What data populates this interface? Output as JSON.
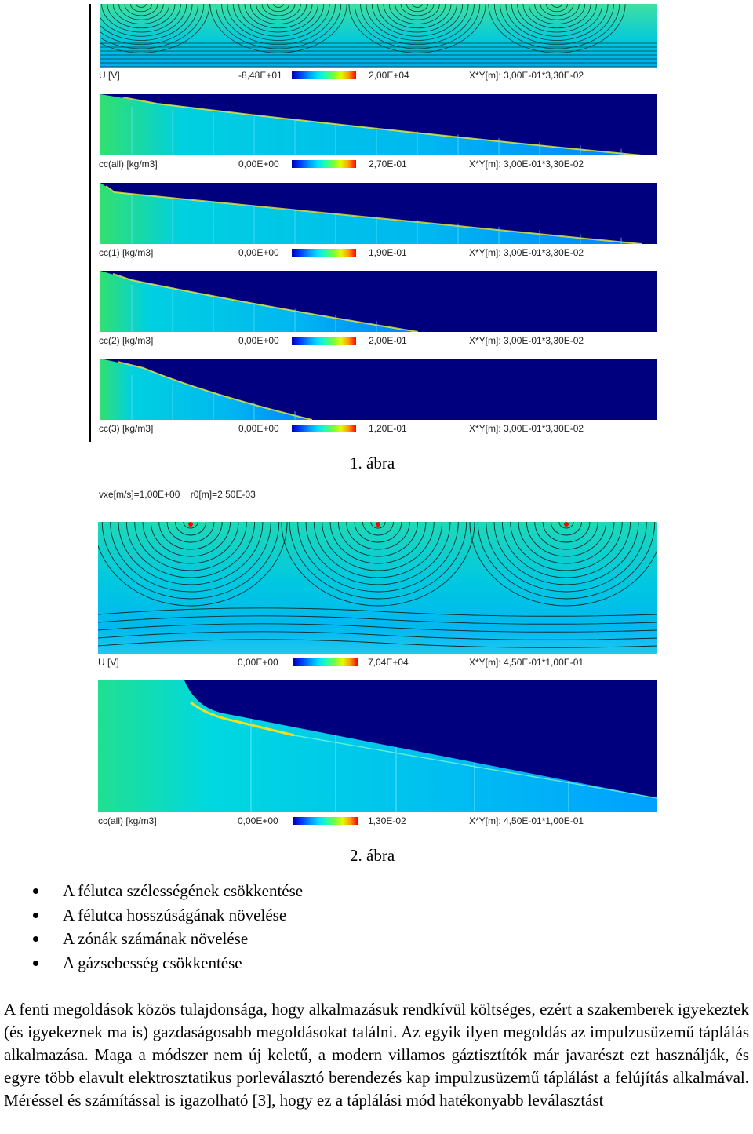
{
  "figure1": {
    "caption": "1. ábra",
    "panels": [
      {
        "variable": "U [V]",
        "min": "-8,48E+01",
        "max": "2,00E+04",
        "dims": "X*Y[m]: 3,00E-01*3,30E-02"
      },
      {
        "variable": "cc(all) [kg/m3]",
        "min": "0,00E+00",
        "max": "2,70E-01",
        "dims": "X*Y[m]: 3,00E-01*3,30E-02"
      },
      {
        "variable": "cc(1) [kg/m3]",
        "min": "0,00E+00",
        "max": "1,90E-01",
        "dims": "X*Y[m]: 3,00E-01*3,30E-02"
      },
      {
        "variable": "cc(2) [kg/m3]",
        "min": "0,00E+00",
        "max": "2,00E-01",
        "dims": "X*Y[m]: 3,00E-01*3,30E-02"
      },
      {
        "variable": "cc(3) [kg/m3]",
        "min": "0,00E+00",
        "max": "1,20E-01",
        "dims": "X*Y[m]: 3,00E-01*3,30E-02"
      }
    ]
  },
  "figure2": {
    "caption": "2. ábra",
    "header_vxe": "vxe[m/s]=1,00E+00",
    "header_r0": "r0[m]=2,50E-03",
    "panels": [
      {
        "variable": "U [V]",
        "min": "0,00E+00",
        "max": "7,04E+04",
        "dims": "X*Y[m]: 4,50E-01*1,00E-01"
      },
      {
        "variable": "cc(all) [kg/m3]",
        "min": "0,00E+00",
        "max": "1,30E-02",
        "dims": "X*Y[m]: 4,50E-01*1,00E-01"
      }
    ]
  },
  "bullets": [
    "A félutca szélességének csökkentése",
    "A félutca hosszúságának növelése",
    "A zónák számának növelése",
    "A gázsebesség csökkentése"
  ],
  "paragraph": "A fenti megoldások közös tulajdonsága, hogy alkalmazásuk rendkívül költséges, ezért a szakemberek igyekeztek (és igyekeznek ma is) gazdaságosabb megoldásokat találni. Az egyik ilyen megoldás az impulzusüzemű táplálás alkalmazása. Maga a módszer nem új keletű, a modern villamos gáztisztítók már javarészt ezt használják, és egyre több elavult elektrosztatikus porleválasztó berendezés kap impulzusüzemű táplálást a felújítás alkalmával. Méréssel és számítással is igazolható [3], hogy ez a táplálási mód hatékonyabb leválasztást",
  "colors": {
    "deep_blue": "#00007f",
    "field_cyan": "#00c8d8",
    "accent_red": "#ff0000"
  }
}
